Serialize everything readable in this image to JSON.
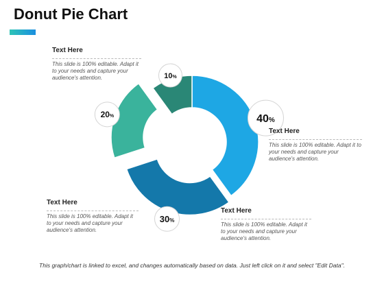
{
  "title": "Donut Pie Chart",
  "accent": {
    "from": "#2ec4b6",
    "to": "#1a8fe0"
  },
  "text_blocks": [
    {
      "heading": "Text Here",
      "body": "This slide is 100% editable. Adapt it to your needs and capture your audience's attention."
    },
    {
      "heading": "Text Here",
      "body": "This slide is 100% editable. Adapt it to your needs and capture your audience's attention."
    },
    {
      "heading": "Text Here",
      "body": "This slide is 100% editable. Adapt it to your needs and capture your audience's attention."
    },
    {
      "heading": "Text Here",
      "body": "This slide is 100% editable. Adapt it to your needs and capture your audience's attention."
    }
  ],
  "footer": "This graph/chart is linked to excel, and changes automatically based on data. Just left click on it and select \"Edit Data\".",
  "chart_data": {
    "type": "pie",
    "donut": true,
    "slices": [
      {
        "value": 40,
        "label": "40",
        "color": "#1ea7e4",
        "exploded": false
      },
      {
        "value": 30,
        "label": "30",
        "color": "#1478aa",
        "exploded": true
      },
      {
        "value": 20,
        "label": "20",
        "color": "#3ab39c",
        "exploded": true
      },
      {
        "value": 10,
        "label": "10",
        "color": "#2a8776",
        "exploded": false
      }
    ],
    "unit": "%"
  }
}
